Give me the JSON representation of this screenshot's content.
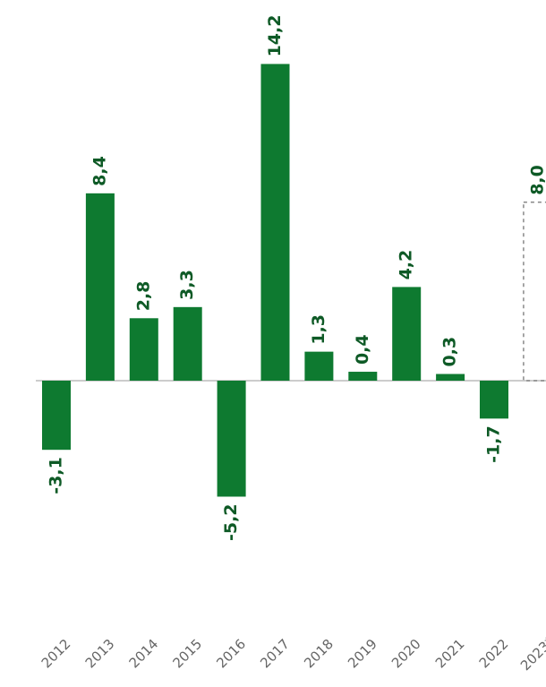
{
  "chart_data": {
    "type": "bar",
    "title": "",
    "xlabel": "",
    "ylabel": "",
    "categories": [
      "2012",
      "2013",
      "2014",
      "2015",
      "2016",
      "2017",
      "2018",
      "2019",
      "2020",
      "2021",
      "2022",
      "2023*"
    ],
    "values": [
      -3.1,
      8.4,
      2.8,
      3.3,
      -5.2,
      14.2,
      1.3,
      0.4,
      4.2,
      0.3,
      -1.7,
      8.0
    ],
    "value_labels": [
      "-3,1",
      "8,4",
      "2,8",
      "3,3",
      "-5,2",
      "14,2",
      "1,3",
      "0,4",
      "4,2",
      "0,3",
      "-1,7",
      "8,0"
    ],
    "forecast": [
      false,
      false,
      false,
      false,
      false,
      false,
      false,
      false,
      false,
      false,
      false,
      true
    ],
    "bar_color": "#0e7a30",
    "label_color": "#0e5a26",
    "tick_color": "#666666",
    "forecast_border_color": "#888888",
    "ylim": [
      -5.2,
      14.2
    ],
    "grid": false,
    "legend": "none"
  }
}
